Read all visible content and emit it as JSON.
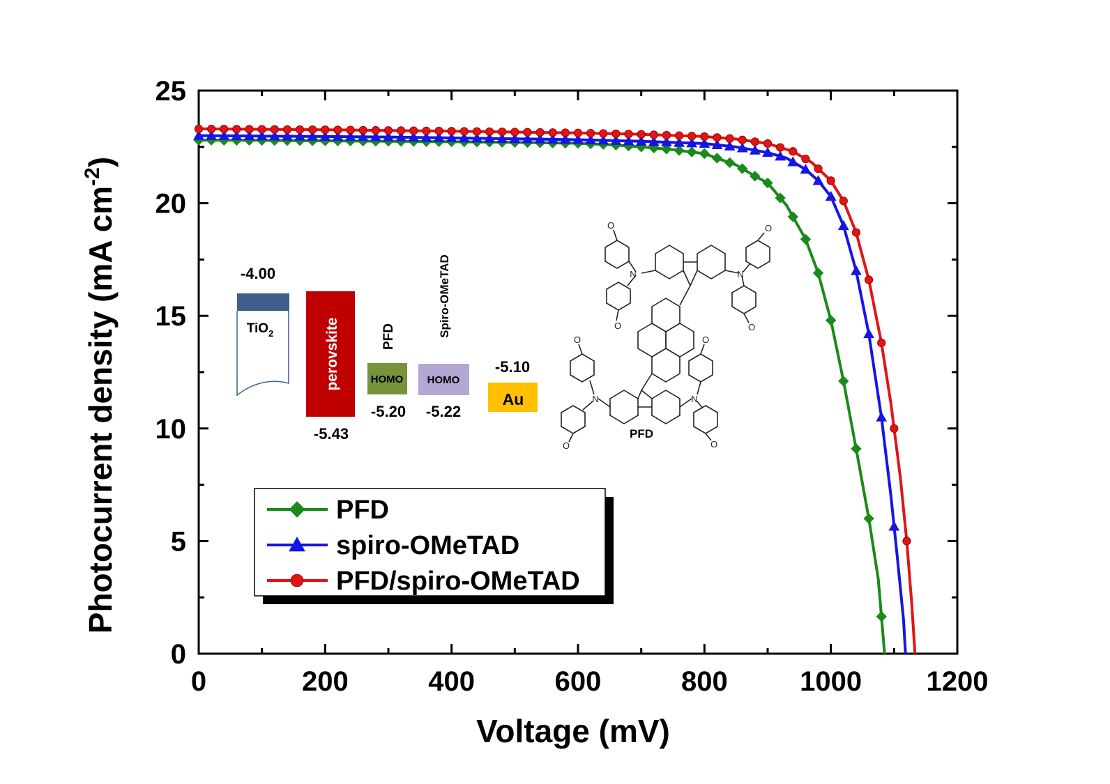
{
  "chart_data": {
    "type": "line",
    "xlabel": "Voltage (mV)",
    "ylabel_main": "Photocurrent density (mA cm",
    "ylabel_sup": "-2",
    "ylabel_end": ")",
    "xlim": [
      0,
      1200
    ],
    "ylim": [
      0,
      25
    ],
    "xticks": [
      "0",
      "200",
      "400",
      "600",
      "800",
      "1000",
      "1200"
    ],
    "yticks": [
      "0",
      "5",
      "10",
      "15",
      "20",
      "25"
    ],
    "grid": false,
    "legend_position": "bottom-left",
    "series": [
      {
        "name": "PFD",
        "color": "#1a8a1a",
        "marker": "diamond",
        "points": [
          [
            0,
            22.8
          ],
          [
            100,
            22.79
          ],
          [
            200,
            22.77
          ],
          [
            300,
            22.75
          ],
          [
            400,
            22.73
          ],
          [
            500,
            22.7
          ],
          [
            600,
            22.66
          ],
          [
            650,
            22.6
          ],
          [
            700,
            22.5
          ],
          [
            750,
            22.38
          ],
          [
            800,
            22.2
          ],
          [
            850,
            21.7
          ],
          [
            880,
            21.2
          ],
          [
            900,
            20.9
          ],
          [
            930,
            19.9
          ],
          [
            960,
            18.4
          ],
          [
            980,
            16.9
          ],
          [
            1000,
            14.8
          ],
          [
            1020,
            12.1
          ],
          [
            1040,
            9.1
          ],
          [
            1060,
            6.0
          ],
          [
            1075,
            3.3
          ],
          [
            1085,
            0
          ]
        ]
      },
      {
        "name": "spiro-OMeTAD",
        "color": "#1515e6",
        "marker": "triangle",
        "points": [
          [
            0,
            23.0
          ],
          [
            100,
            22.98
          ],
          [
            200,
            22.96
          ],
          [
            300,
            22.94
          ],
          [
            400,
            22.9
          ],
          [
            500,
            22.86
          ],
          [
            600,
            22.82
          ],
          [
            700,
            22.75
          ],
          [
            800,
            22.65
          ],
          [
            850,
            22.5
          ],
          [
            900,
            22.25
          ],
          [
            930,
            22.0
          ],
          [
            960,
            21.5
          ],
          [
            980,
            21.0
          ],
          [
            1000,
            20.3
          ],
          [
            1020,
            19.0
          ],
          [
            1040,
            17.0
          ],
          [
            1060,
            14.2
          ],
          [
            1080,
            10.5
          ],
          [
            1095,
            7.0
          ],
          [
            1105,
            4.3
          ],
          [
            1115,
            1.5
          ],
          [
            1118,
            0
          ]
        ]
      },
      {
        "name": "PFD/spiro-OMeTAD",
        "color": "#e01515",
        "marker": "circle",
        "points": [
          [
            0,
            23.3
          ],
          [
            100,
            23.28
          ],
          [
            200,
            23.26
          ],
          [
            300,
            23.23
          ],
          [
            400,
            23.2
          ],
          [
            500,
            23.16
          ],
          [
            600,
            23.12
          ],
          [
            700,
            23.06
          ],
          [
            800,
            22.96
          ],
          [
            850,
            22.85
          ],
          [
            900,
            22.65
          ],
          [
            940,
            22.3
          ],
          [
            970,
            21.8
          ],
          [
            1000,
            21.0
          ],
          [
            1020,
            20.1
          ],
          [
            1040,
            18.7
          ],
          [
            1060,
            16.6
          ],
          [
            1080,
            13.8
          ],
          [
            1095,
            11.1
          ],
          [
            1110,
            7.8
          ],
          [
            1120,
            5.0
          ],
          [
            1128,
            2.2
          ],
          [
            1133,
            0
          ]
        ]
      }
    ]
  },
  "inset": {
    "tio2_value": "-4.00",
    "tio2_label": "TiO",
    "tio2_sub": "2",
    "perovskite_label": "perovskite",
    "perovskite_value": "-5.43",
    "pfd_label": "PFD",
    "pfd_homo": "HOMO",
    "pfd_value": "-5.20",
    "spiro_label": "Spiro-OMeTAD",
    "spiro_homo": "HOMO",
    "spiro_value": "-5.22",
    "au_label": "Au",
    "au_value": "-5.10",
    "colors": {
      "tio2": "#3f5f8a",
      "perovskite": "#c00000",
      "pfd_homo": "#77933c",
      "spiro_homo": "#b4a7d6",
      "au": "#ffc000"
    }
  },
  "molecule": {
    "name": "PFD",
    "atom_n": "N",
    "atom_o": "O"
  }
}
